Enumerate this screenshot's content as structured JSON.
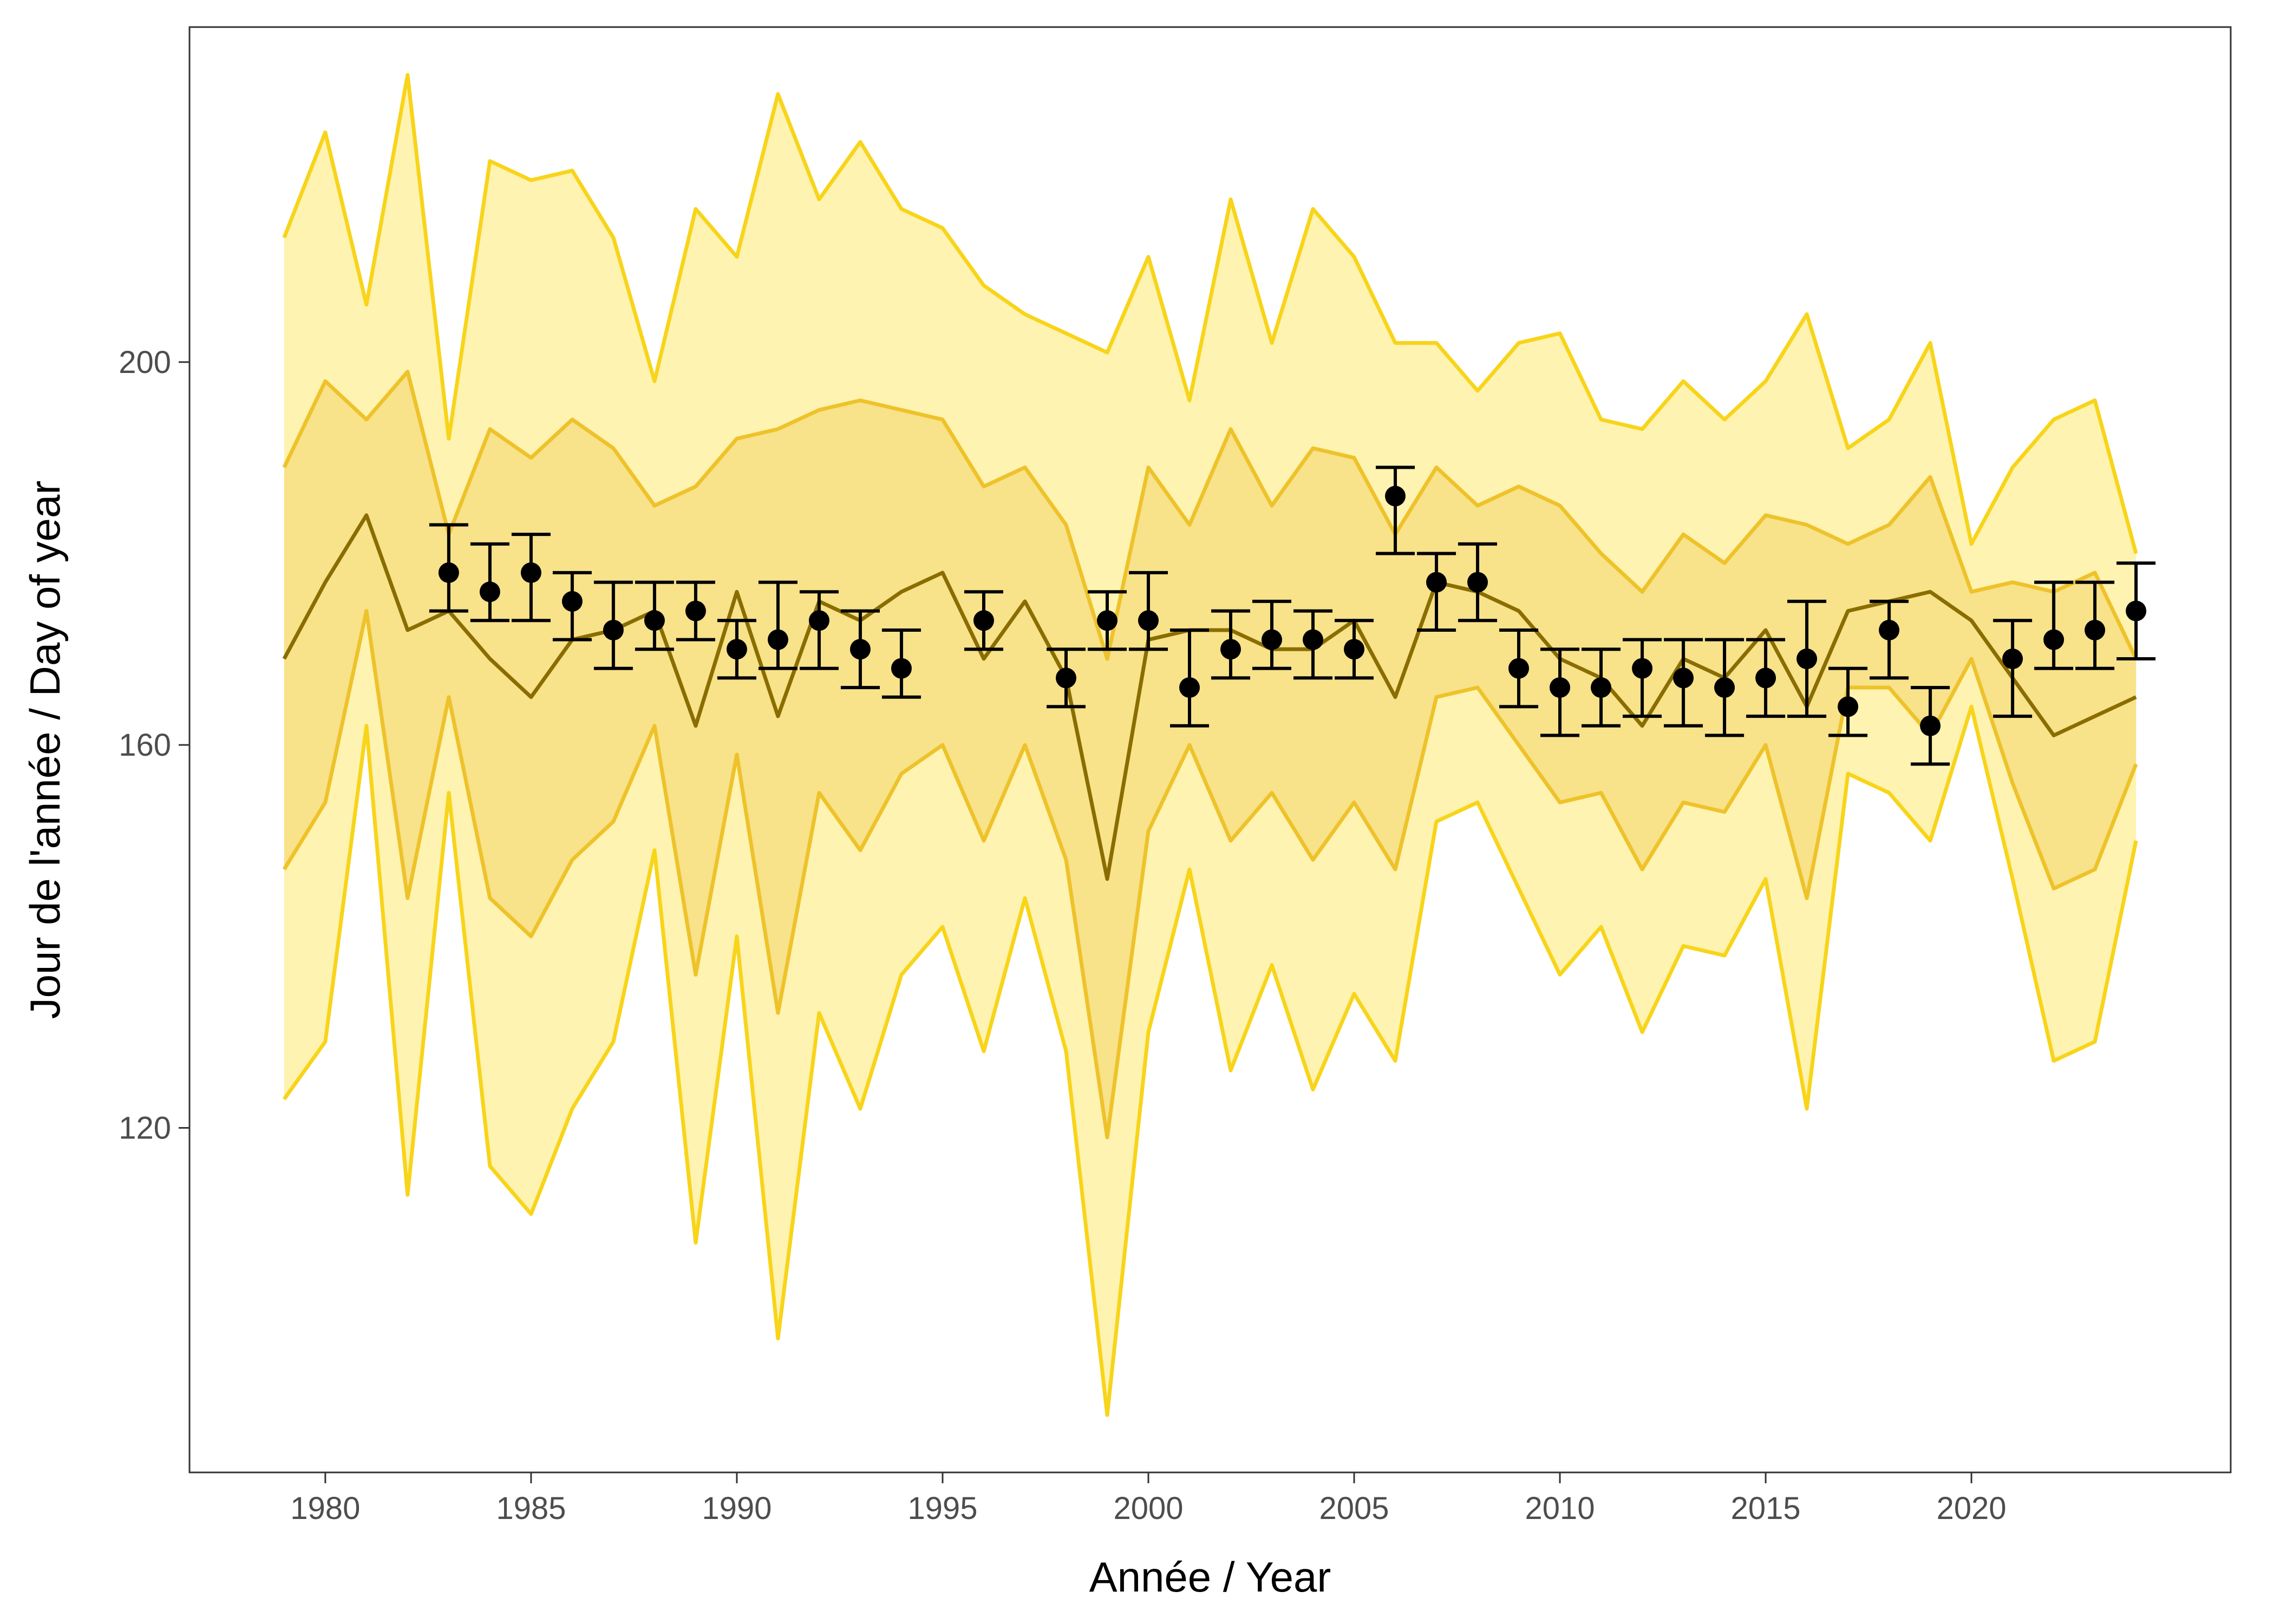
{
  "chart_data": {
    "type": "line",
    "title": "",
    "xlabel": "Année / Year",
    "ylabel": "Jour de l'année / Day of year",
    "xlim": [
      1976.7,
      2026.3
    ],
    "ylim": [
      84,
      235
    ],
    "x_ticks": [
      1980,
      1985,
      1990,
      1995,
      2000,
      2005,
      2010,
      2015,
      2020
    ],
    "y_ticks": [
      120,
      160,
      200
    ],
    "grid": false,
    "legend": "none",
    "colors": {
      "outer_band_fill": "#fef3b0",
      "outer_band_line": "#f8d41a",
      "inner_band_fill": "#f8e28a",
      "inner_band_line": "#eec22a",
      "median_line": "#8a6d00",
      "points": "#000000",
      "panel_border": "#333333"
    },
    "bands": {
      "years": [
        1979,
        1980,
        1981,
        1982,
        1983,
        1984,
        1985,
        1986,
        1987,
        1988,
        1989,
        1990,
        1991,
        1992,
        1993,
        1994,
        1995,
        1996,
        1997,
        1998,
        1999,
        2000,
        2001,
        2002,
        2003,
        2004,
        2005,
        2006,
        2007,
        2008,
        2009,
        2010,
        2011,
        2012,
        2013,
        2014,
        2015,
        2016,
        2017,
        2018,
        2019,
        2020,
        2021,
        2022,
        2023,
        2024
      ],
      "outer_upper": [
        213,
        224,
        206,
        230,
        192,
        221,
        219,
        220,
        213,
        198,
        216,
        211,
        228,
        217,
        223,
        216,
        214,
        208,
        205,
        203,
        201,
        211,
        196,
        217,
        202,
        216,
        211,
        202,
        202,
        197,
        202,
        203,
        194,
        193,
        198,
        194,
        198,
        205,
        191,
        194,
        202,
        181,
        189,
        194,
        196,
        180
      ],
      "inner_upper": [
        189,
        198,
        194,
        199,
        182,
        193,
        190,
        194,
        191,
        185,
        187,
        192,
        193,
        195,
        196,
        195,
        194,
        187,
        189,
        183,
        169,
        189,
        183,
        193,
        185,
        191,
        190,
        182,
        189,
        185,
        187,
        185,
        180,
        176,
        182,
        179,
        184,
        183,
        181,
        183,
        188,
        176,
        177,
        176,
        178,
        169
      ],
      "median": [
        169,
        177,
        184,
        172,
        174,
        169,
        165,
        171,
        172,
        174,
        162,
        176,
        163,
        175,
        173,
        176,
        178,
        169,
        175,
        167,
        146,
        171,
        172,
        172,
        170,
        170,
        173,
        165,
        177,
        176,
        174,
        169,
        167,
        162,
        169,
        167,
        172,
        164,
        174,
        175,
        176,
        173,
        167,
        161,
        163,
        165
      ],
      "inner_lower": [
        147,
        154,
        174,
        144,
        165,
        144,
        140,
        148,
        152,
        162,
        136,
        159,
        132,
        155,
        149,
        157,
        160,
        150,
        160,
        148,
        119,
        151,
        160,
        150,
        155,
        148,
        154,
        147,
        165,
        166,
        160,
        154,
        155,
        147,
        154,
        153,
        160,
        144,
        166,
        166,
        161,
        169,
        156,
        145,
        147,
        158
      ],
      "outer_lower": [
        123,
        129,
        162,
        113,
        155,
        116,
        111,
        122,
        129,
        149,
        108,
        140,
        98,
        132,
        122,
        136,
        141,
        128,
        144,
        128,
        90,
        130,
        147,
        126,
        137,
        124,
        134,
        127,
        152,
        154,
        145,
        136,
        141,
        130,
        139,
        138,
        146,
        122,
        157,
        155,
        150,
        164,
        146,
        127,
        129,
        150
      ]
    },
    "points": {
      "years": [
        1983,
        1984,
        1985,
        1986,
        1987,
        1988,
        1989,
        1990,
        1991,
        1992,
        1993,
        1994,
        1996,
        1998,
        1999,
        2000,
        2001,
        2002,
        2003,
        2004,
        2005,
        2006,
        2007,
        2008,
        2009,
        2010,
        2011,
        2012,
        2013,
        2014,
        2015,
        2016,
        2017,
        2018,
        2019,
        2021,
        2022,
        2023,
        2024
      ],
      "values": [
        178,
        176,
        178,
        175,
        172,
        173,
        174,
        170,
        171,
        173,
        170,
        168,
        173,
        167,
        173,
        173,
        166,
        170,
        171,
        171,
        170,
        186,
        177,
        177,
        168,
        166,
        166,
        168,
        167,
        166,
        167,
        169,
        164,
        172,
        162,
        169,
        171,
        172,
        174
      ],
      "lower": [
        174,
        173,
        173,
        171,
        168,
        170,
        171,
        167,
        168,
        168,
        166,
        165,
        170,
        164,
        170,
        170,
        162,
        167,
        168,
        167,
        167,
        180,
        172,
        173,
        164,
        161,
        162,
        163,
        162,
        161,
        163,
        163,
        161,
        167,
        158,
        163,
        168,
        168,
        169
      ],
      "upper": [
        183,
        181,
        182,
        178,
        177,
        177,
        177,
        173,
        177,
        176,
        174,
        172,
        176,
        170,
        176,
        178,
        172,
        174,
        175,
        174,
        173,
        189,
        180,
        181,
        172,
        170,
        170,
        171,
        171,
        171,
        171,
        175,
        168,
        175,
        166,
        173,
        177,
        177,
        179
      ]
    }
  }
}
